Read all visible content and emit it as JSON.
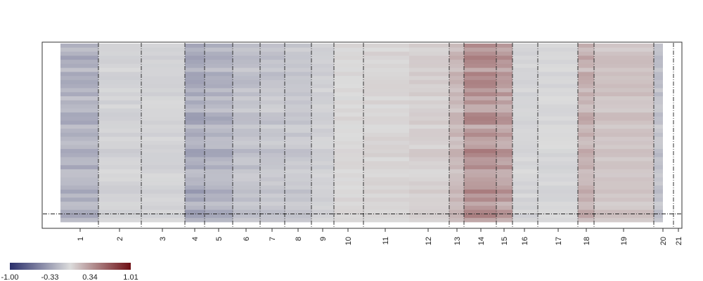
{
  "chart_data": {
    "type": "heatmap",
    "title": "",
    "xlabel": "",
    "ylabel": "",
    "x_categories": [
      "1",
      "2",
      "3",
      "4",
      "5",
      "6",
      "7",
      "8",
      "9",
      "10",
      "11",
      "12",
      "13",
      "14",
      "15",
      "16",
      "17",
      "18",
      "19",
      "20",
      "21"
    ],
    "segment_boundaries": [
      "1|2",
      "2|3",
      "3|4",
      "4|5",
      "5|6",
      "6|7",
      "7|8",
      "8|9",
      "9|10",
      "10|11",
      "12|13",
      "13|14",
      "14|15",
      "15|16",
      "16|17",
      "17|18",
      "18|19",
      "19|20",
      "20|21"
    ],
    "column_means": [
      -0.22,
      -0.05,
      -0.04,
      -0.26,
      -0.22,
      -0.14,
      -0.12,
      -0.1,
      -0.06,
      0.02,
      0.04,
      0.06,
      0.16,
      0.34,
      0.28,
      -0.03,
      -0.02,
      0.2,
      0.12,
      -0.14,
      0.0
    ],
    "highlight_row_index": 42,
    "rows": 44,
    "legend": {
      "colors": [
        "#2a2f6b",
        "#dcdcdc",
        "#6e0f14"
      ],
      "tick_labels": [
        "-1.00",
        "-0.33",
        "0.34",
        "1.01"
      ],
      "range": [
        -1.0,
        1.01
      ]
    }
  }
}
